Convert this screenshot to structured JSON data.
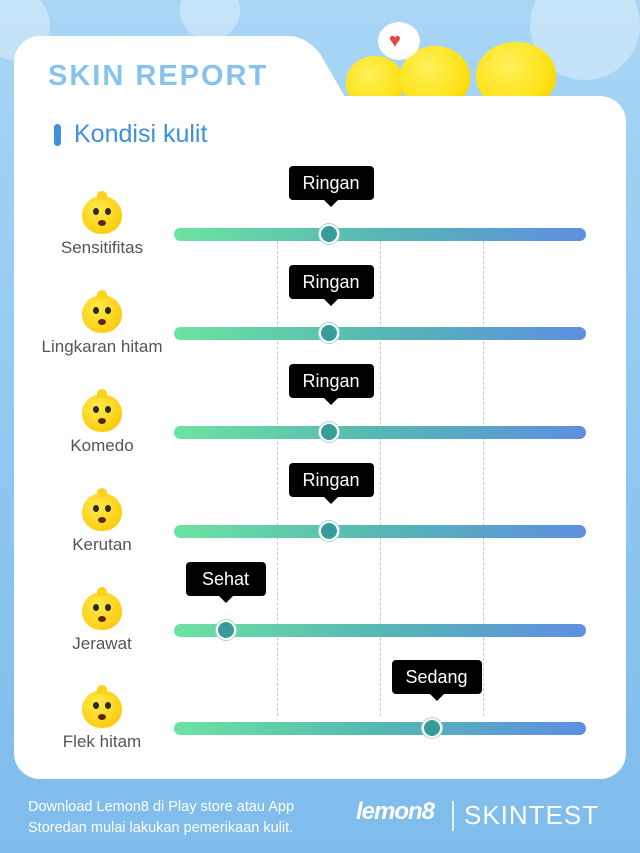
{
  "header": {
    "title": "SKIN REPORT"
  },
  "section": {
    "title": "Kondisi kulit"
  },
  "theme": {
    "accent": "#3d8fdf",
    "title_color": "#86c2ee",
    "track_start": "#6ce3a0",
    "track_end": "#5e8fe1",
    "tooltip_bg": "#000000"
  },
  "scale": {
    "min": 0,
    "max": 4,
    "levels_shown": [
      "Sehat",
      "Ringan",
      "Sedang"
    ]
  },
  "rows": [
    {
      "label": "Sensitifitas",
      "level": "Ringan",
      "value": 1.5,
      "icon": "emoji-blush-icon"
    },
    {
      "label": "Lingkaran hitam",
      "level": "Ringan",
      "value": 1.5,
      "icon": "emoji-tired-icon"
    },
    {
      "label": "Komedo",
      "level": "Ringan",
      "value": 1.5,
      "icon": "emoji-covered-icon"
    },
    {
      "label": "Kerutan",
      "level": "Ringan",
      "value": 1.5,
      "icon": "emoji-wrinkle-icon"
    },
    {
      "label": "Jerawat",
      "level": "Sehat",
      "value": 0.5,
      "icon": "emoji-surprised-icon"
    },
    {
      "label": "Flek hitam",
      "level": "Sedang",
      "value": 2.5,
      "icon": "emoji-squint-icon"
    }
  ],
  "footer": {
    "text": "Download Lemon8 di Play store atau App Storedan mulai lakukan pemerikaan kulit.",
    "brand1": "lemon8",
    "brand2": "SKINTEST"
  }
}
